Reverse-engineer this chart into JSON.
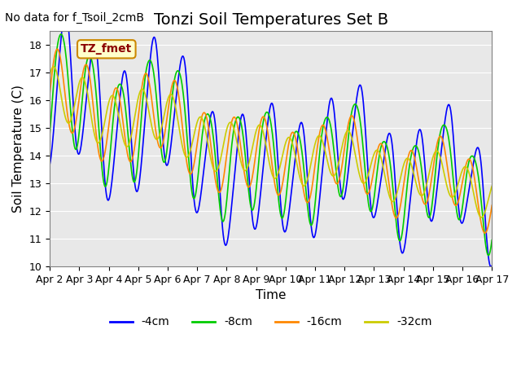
{
  "title": "Tonzi Soil Temperatures Set B",
  "xlabel": "Time",
  "ylabel": "Soil Temperature (C)",
  "top_left_note": "No data for f_Tsoil_2cmB",
  "legend_label": "TZ_fmet",
  "ylim": [
    10.0,
    18.5
  ],
  "yticks": [
    10.0,
    11.0,
    12.0,
    13.0,
    14.0,
    15.0,
    16.0,
    17.0,
    18.0
  ],
  "xtick_labels": [
    "Apr 2",
    "Apr 3",
    "Apr 4",
    "Apr 5",
    "Apr 6",
    "Apr 7",
    "Apr 8",
    "Apr 9",
    "Apr 10",
    "Apr 11",
    "Apr 12",
    "Apr 13",
    "Apr 14",
    "Apr 15",
    "Apr 16",
    "Apr 17"
  ],
  "colors": {
    "4cm": "#0000ff",
    "8cm": "#00cc00",
    "16cm": "#ff8800",
    "32cm": "#cccc00"
  },
  "line_labels": [
    "-4cm",
    "-8cm",
    "-16cm",
    "-32cm"
  ],
  "bg_color": "#e8e8e8",
  "title_fontsize": 14,
  "axis_fontsize": 11,
  "tick_fontsize": 9,
  "note_fontsize": 10,
  "legend_box_color": "#ffffcc",
  "legend_box_edgecolor": "#cc8800"
}
